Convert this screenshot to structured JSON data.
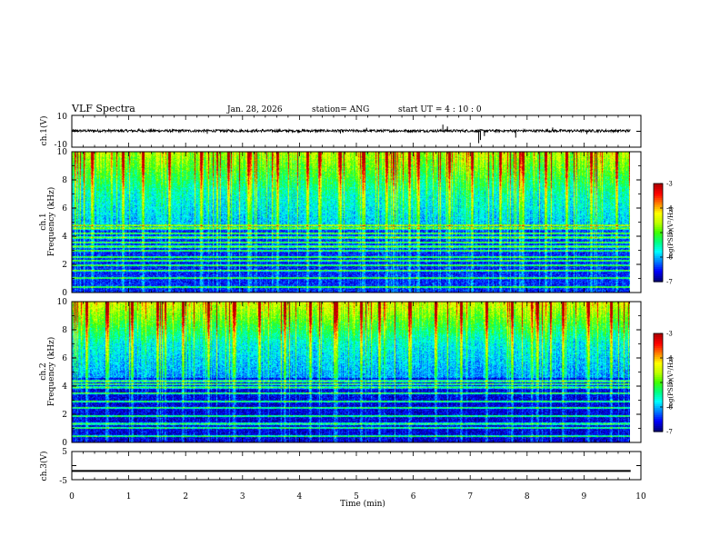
{
  "header": {
    "title": "VLF Spectra",
    "date": "Jan. 28, 2026",
    "station": "station= ANG",
    "start_time": "start  UT =   4 : 10 : 0"
  },
  "colors": {
    "colormap": [
      "#000080",
      "#0000ff",
      "#0080ff",
      "#00ffff",
      "#00ff80",
      "#40ff00",
      "#c0ff00",
      "#ffff00",
      "#ff8000",
      "#ff0000",
      "#b00000"
    ],
    "line_trace": "#000000"
  },
  "chart_data": [
    {
      "id": "ch1-waveform",
      "type": "line",
      "ylabel": "ch.1(V)",
      "ylim": [
        -10,
        10
      ],
      "y_tick_labels": [
        "10",
        "-10"
      ],
      "x_range_min": [
        0,
        10
      ],
      "data_extent_min": [
        0,
        9.82
      ],
      "mean_level_v": 0.3,
      "noise_amplitude_v": 0.8,
      "spikes": [
        {
          "t": 1.18,
          "v": 1.8
        },
        {
          "t": 2.38,
          "v": -1.6
        },
        {
          "t": 3.35,
          "v": 1.5
        },
        {
          "t": 4.72,
          "v": -1.4
        },
        {
          "t": 5.18,
          "v": 2.2
        },
        {
          "t": 6.52,
          "v": 4.2
        },
        {
          "t": 6.6,
          "v": 3.0
        },
        {
          "t": 7.15,
          "v": -7.5
        },
        {
          "t": 7.18,
          "v": -5.5
        },
        {
          "t": 7.25,
          "v": -3.0
        },
        {
          "t": 7.8,
          "v": -4.0
        },
        {
          "t": 8.45,
          "v": 2.4
        },
        {
          "t": 9.05,
          "v": -1.8
        }
      ]
    },
    {
      "id": "ch1-spectrogram",
      "type": "heatmap",
      "ylabel_line1": "ch.1",
      "ylabel_line2": "Frequency (kHz)",
      "ylim": [
        0,
        10
      ],
      "y_tick_labels": [
        "0",
        "2",
        "4",
        "6",
        "8",
        "10"
      ],
      "x_range_min": [
        0,
        10
      ],
      "data_extent_min": [
        0,
        9.82
      ],
      "colorbar": {
        "label": "log(PSD)(V²/Hz)",
        "range": [
          -7,
          -3
        ],
        "tick_labels": [
          "-3",
          "-4",
          "-5",
          "-6",
          "-7"
        ]
      },
      "background_log_psd": {
        "below_4.6_khz": -6.6,
        "4.6_to_7_khz": -6.2,
        "above_7_khz": -5.0
      },
      "narrowband_lines_khz": [
        0.35,
        1.0,
        1.55,
        1.9,
        2.25,
        2.5,
        2.95,
        3.25,
        3.55,
        3.9,
        4.2,
        4.55,
        4.75
      ],
      "strong_sferic_times_min": [
        0.35,
        0.9,
        1.25,
        1.72,
        2.28,
        2.75,
        3.1,
        3.62,
        4.15,
        4.35,
        4.72,
        5.12,
        5.55,
        5.95,
        6.1,
        6.65,
        7.05,
        7.55,
        7.95,
        8.35,
        8.72,
        9.15,
        9.6
      ]
    },
    {
      "id": "ch2-spectrogram",
      "type": "heatmap",
      "ylabel_line1": "ch.2",
      "ylabel_line2": "Frequency (kHz)",
      "ylim": [
        0,
        10
      ],
      "y_tick_labels": [
        "0",
        "2",
        "4",
        "6",
        "8",
        "10"
      ],
      "x_range_min": [
        0,
        10
      ],
      "data_extent_min": [
        0,
        9.82
      ],
      "colorbar": {
        "label": "log(PSD)(V²/Hz)",
        "range": [
          -7,
          -3
        ],
        "tick_labels": [
          "-3",
          "-4",
          "-5",
          "-6",
          "-7"
        ]
      },
      "background_log_psd": {
        "below_4.6_khz": -6.8,
        "4.6_to_7_khz": -6.3,
        "above_7_khz": -4.8
      },
      "narrowband_lines_khz": [
        0.4,
        1.0,
        1.3,
        1.85,
        2.45,
        2.9,
        3.5,
        3.9,
        4.15,
        4.35
      ],
      "strong_sferic_times_min": [
        0.25,
        0.62,
        1.05,
        1.5,
        1.95,
        2.4,
        2.85,
        3.3,
        3.75,
        4.2,
        4.65,
        5.1,
        5.42,
        5.95,
        6.4,
        6.85,
        7.3,
        7.75,
        8.2,
        8.65,
        9.1,
        9.5
      ]
    },
    {
      "id": "ch3-waveform",
      "type": "line",
      "ylabel": "ch.3(V)",
      "ylim": [
        -5,
        5
      ],
      "y_tick_labels": [
        "5",
        "-5"
      ],
      "x_range_min": [
        0,
        10
      ],
      "data_extent_min": [
        0,
        9.82
      ],
      "level_v": -1.8,
      "trace_thickness_v": 0.45
    }
  ],
  "x_axis": {
    "label": "Time (min)",
    "tick_labels": [
      "0",
      "1",
      "2",
      "3",
      "4",
      "5",
      "6",
      "7",
      "8",
      "9",
      "10"
    ]
  }
}
